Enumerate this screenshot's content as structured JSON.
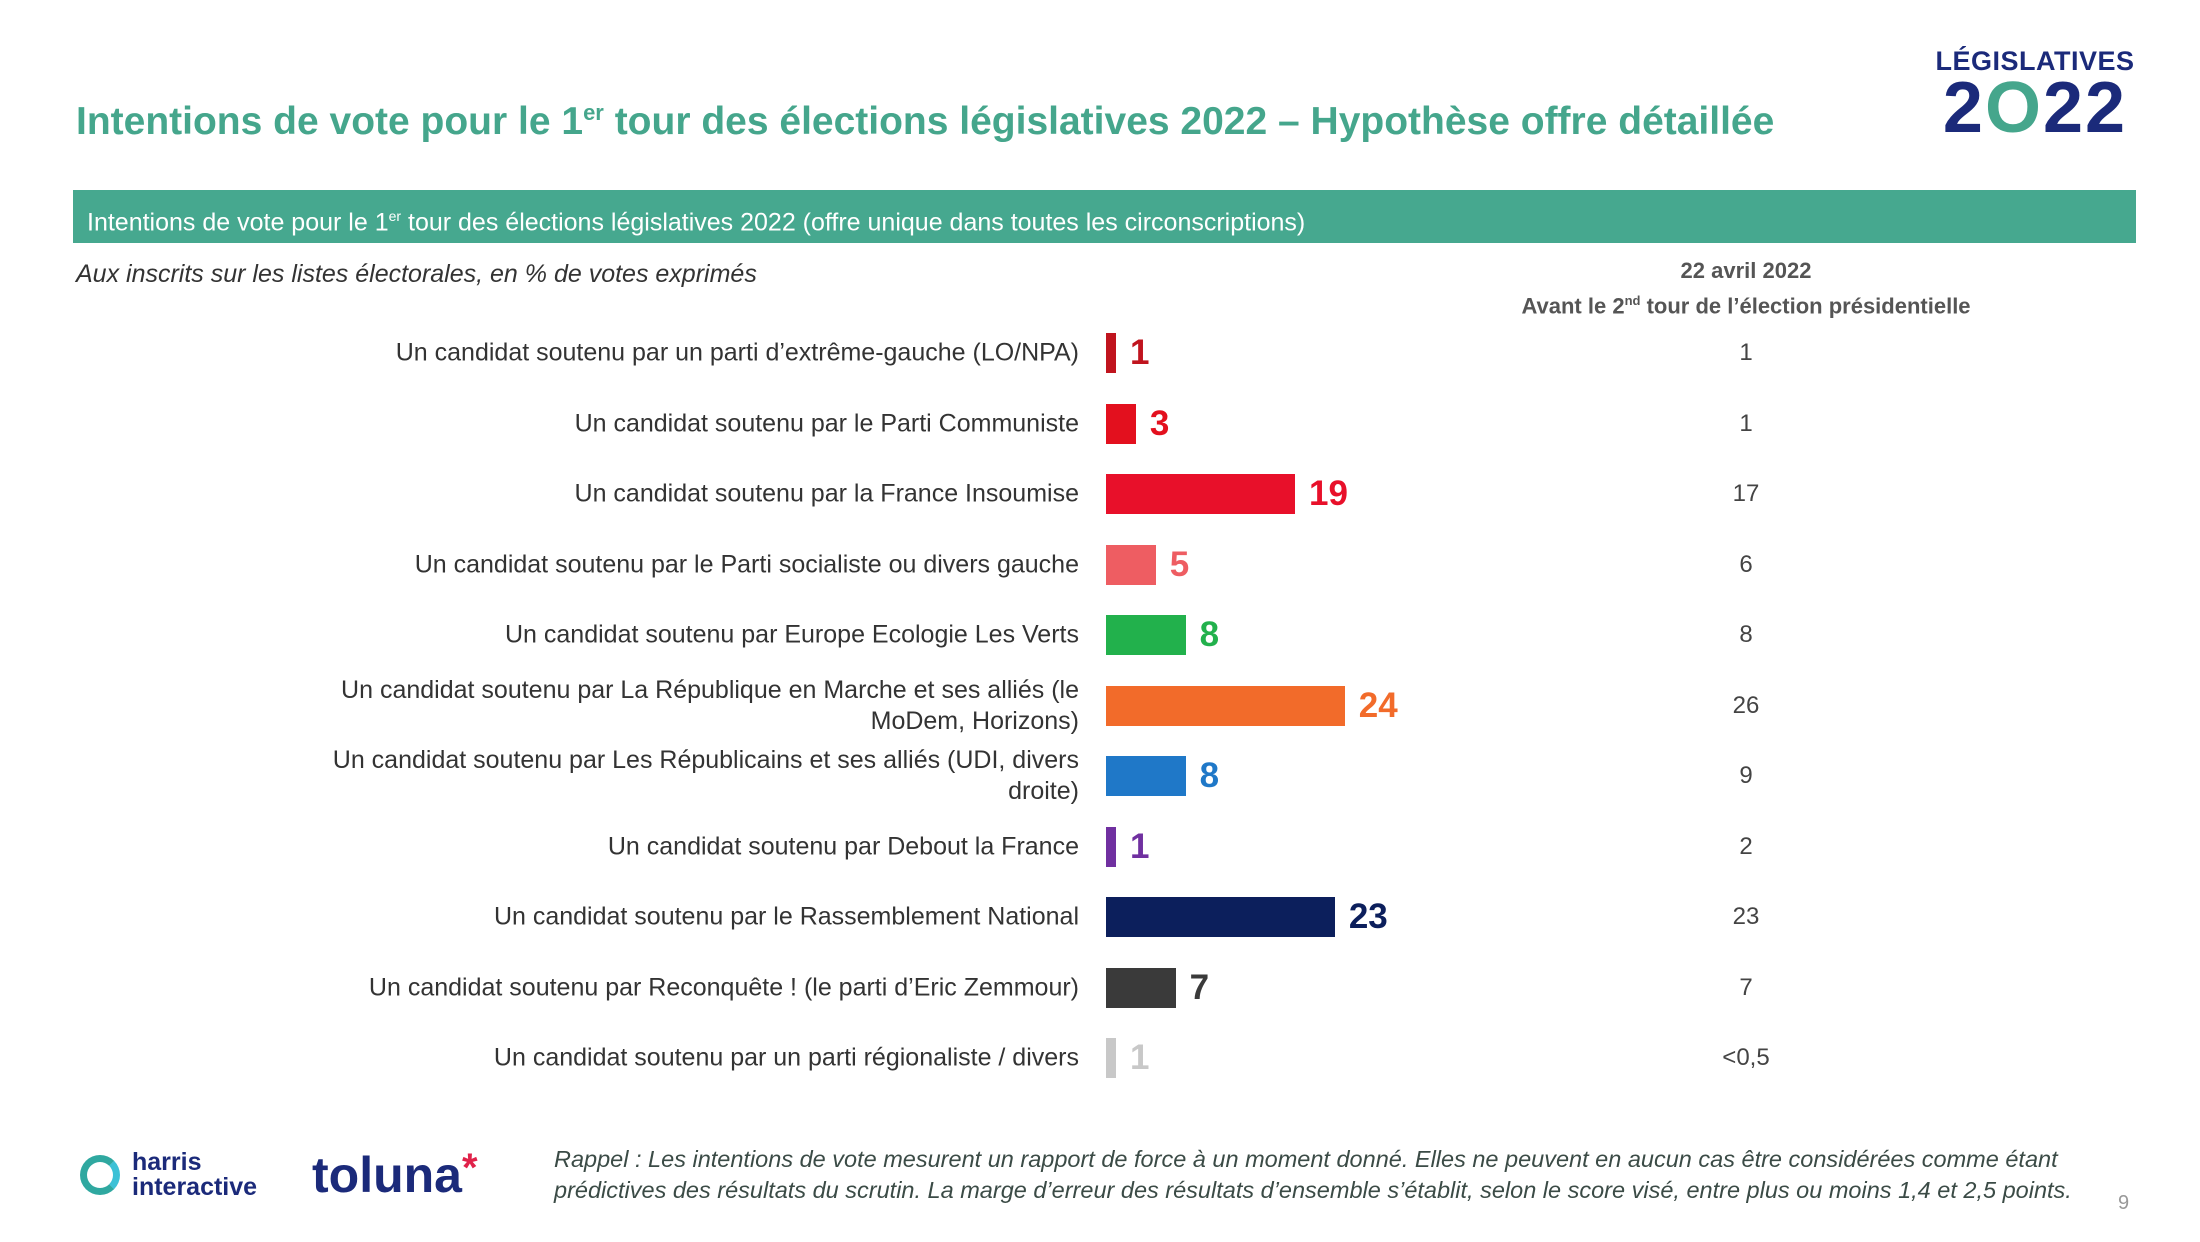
{
  "header": {
    "title_pre": "Intentions de vote pour le 1",
    "title_sup": "er",
    "title_post": " tour des élections législatives 2022 – Hypothèse offre détaillée",
    "logo_line1": "LÉGISLATIVES",
    "logo_line2_a": "2",
    "logo_line2_o": "O",
    "logo_line2_b": "22"
  },
  "band": {
    "pre": "Intentions de vote pour le 1",
    "sup": "er",
    "post": " tour des élections législatives 2022 (offre unique dans toutes les circonscriptions)"
  },
  "subtitle": "Aux inscrits sur les listes électorales, en % de votes exprimés",
  "compare_header": {
    "date": "22 avril 2022",
    "line2_pre": "Avant le 2",
    "line2_sup": "nd",
    "line2_post": " tour de l’élection présidentielle"
  },
  "chart_data": {
    "type": "bar",
    "orientation": "horizontal",
    "title": "Intentions de vote pour le 1er tour des élections législatives 2022",
    "unit": "%",
    "categories": [
      "Un candidat soutenu par un parti d’extrême-gauche (LO/NPA)",
      "Un candidat soutenu par le Parti Communiste",
      "Un candidat soutenu par la France Insoumise",
      "Un candidat soutenu par le Parti socialiste ou divers gauche",
      "Un candidat soutenu par Europe Ecologie Les Verts",
      "Un candidat soutenu par La République en Marche et ses alliés (le MoDem, Horizons)",
      "Un candidat soutenu par Les Républicains et ses alliés (UDI, divers droite)",
      "Un candidat soutenu par Debout la France",
      "Un candidat soutenu par le Rassemblement National",
      "Un candidat soutenu par Reconquête ! (le parti d’Eric Zemmour)",
      "Un candidat soutenu par un parti régionaliste / divers"
    ],
    "values": [
      1,
      3,
      19,
      5,
      8,
      24,
      8,
      1,
      23,
      7,
      1
    ],
    "previous_label": "22 avril 2022",
    "previous_values": [
      "1",
      "1",
      "17",
      "6",
      "8",
      "26",
      "9",
      "2",
      "23",
      "7",
      "<0,5"
    ],
    "colors": [
      "#c0141e",
      "#e3101e",
      "#e8102a",
      "#ee5d62",
      "#22b14c",
      "#f26b2a",
      "#1f78c8",
      "#7030a0",
      "#0c1f5c",
      "#3a3a3a",
      "#c8c8c8"
    ]
  },
  "footer": {
    "harris_line1": "harris",
    "harris_line2": "interactive",
    "toluna": "toluna",
    "note": "Rappel : Les intentions de vote mesurent un rapport de force à un moment donné. Elles ne peuvent en aucun cas être considérées comme étant prédictives des résultats du scrutin. La marge d’erreur des résultats d’ensemble s’établit, selon le score visé, entre plus ou moins 1,4 et 2,5 points.",
    "page": "9"
  }
}
